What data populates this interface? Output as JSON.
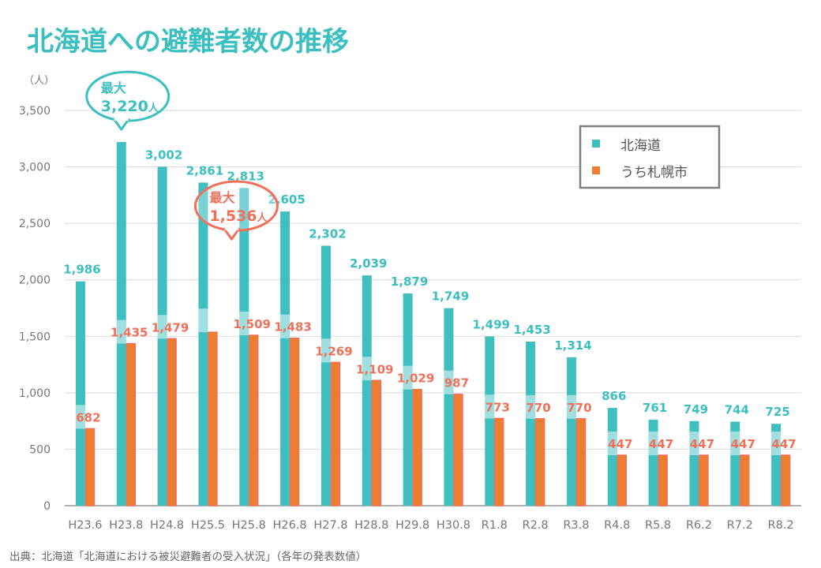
{
  "chart_data": {
    "type": "bar",
    "title": "北海道への避難者数の推移",
    "ylabel": "（人）",
    "ylim": [
      0,
      3500
    ],
    "yticks": [
      "0",
      "500",
      "1,000",
      "1,500",
      "2,000",
      "2,500",
      "3,000",
      "3,500"
    ],
    "grid": true,
    "legend_position": "top-right",
    "categories": [
      "H23.6",
      "H23.8",
      "H24.8",
      "H25.5",
      "H25.8",
      "H26.8",
      "H27.8",
      "H28.8",
      "H29.8",
      "H30.8",
      "R1.8",
      "R2.8",
      "R3.8",
      "R4.8",
      "R5.8",
      "R6.2",
      "R7.2",
      "R8.2"
    ],
    "series": [
      {
        "name": "北海道",
        "color": "#40BFC1",
        "values": [
          1986,
          3220,
          3002,
          2861,
          2813,
          2605,
          2302,
          2039,
          1879,
          1749,
          1499,
          1453,
          1314,
          866,
          761,
          749,
          744,
          725
        ],
        "labels": [
          "1,986",
          "",
          "3,002",
          "2,861",
          "2,813",
          "2,605",
          "2,302",
          "2,039",
          "1,879",
          "1,749",
          "1,499",
          "1,453",
          "1,314",
          "866",
          "761",
          "749",
          "744",
          "725"
        ]
      },
      {
        "name": "うち札幌市",
        "color": "#ED7D31",
        "values": [
          682,
          1435,
          1479,
          1536,
          1509,
          1483,
          1269,
          1109,
          1029,
          987,
          773,
          770,
          770,
          447,
          447,
          447,
          447,
          447
        ],
        "labels": [
          "682",
          "1,435",
          "1,479",
          "",
          "1,509",
          "1,483",
          "1,269",
          "1,109",
          "1,029",
          "987",
          "773",
          "770",
          "770",
          "447",
          "447",
          "447",
          "447",
          "447"
        ]
      }
    ],
    "annotations": [
      {
        "series": "北海道",
        "category": "H23.8",
        "line1": "最大",
        "value": "3,220",
        "unit": "人",
        "color": "#3BBFC0"
      },
      {
        "series": "うち札幌市",
        "category": "H25.5",
        "line1": "最大",
        "value": "1,536",
        "unit": "人",
        "color": "#F0705A"
      }
    ],
    "source": "出典：北海道「北海道における被災避難者の受入状況」（各年の発表数値）"
  }
}
